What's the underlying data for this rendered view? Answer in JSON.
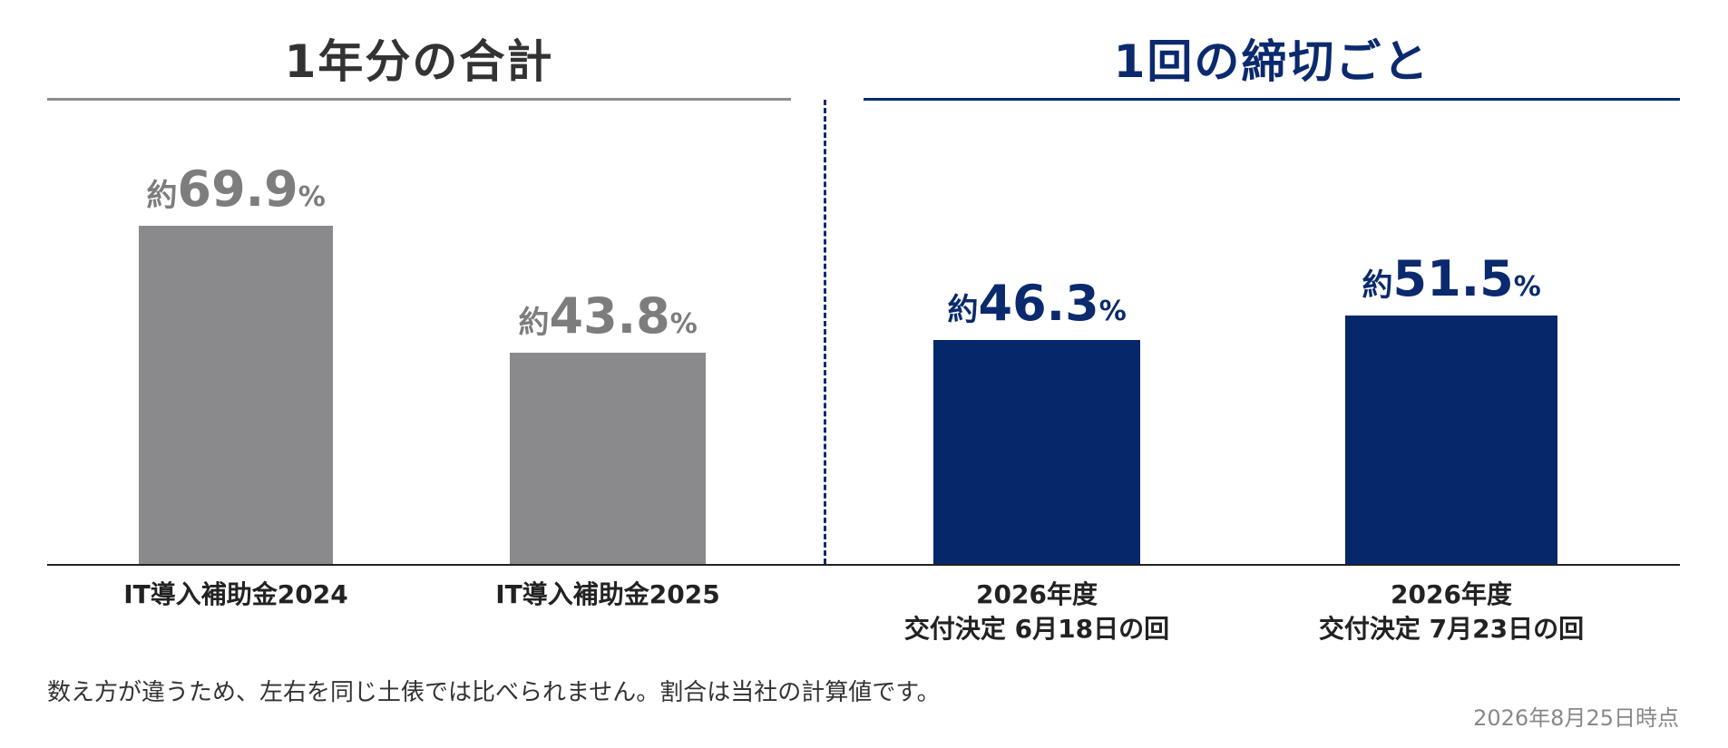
{
  "colors": {
    "gray": "#8a8a8c",
    "navy": "#07276b",
    "gray_text": "#7d7d7d",
    "navy_text": "#0b2a6e"
  },
  "sections": {
    "left_title": "1年分の合計",
    "right_title": "1回の締切ごと"
  },
  "chart_data": {
    "type": "bar",
    "categories": [
      "IT導入補助金2024",
      "IT導入補助金2025",
      "2026年度 交付決定 6月18日の回",
      "2026年度 交付決定 7月23日の回"
    ],
    "values": [
      69.9,
      43.8,
      46.3,
      51.5
    ],
    "value_labels": [
      {
        "prefix": "約",
        "number": "69.9",
        "suffix": "%"
      },
      {
        "prefix": "約",
        "number": "43.8",
        "suffix": "%"
      },
      {
        "prefix": "約",
        "number": "46.3",
        "suffix": "%"
      },
      {
        "prefix": "約",
        "number": "51.5",
        "suffix": "%"
      }
    ],
    "category_lines": [
      [
        "IT導入補助金2024"
      ],
      [
        "IT導入補助金2025"
      ],
      [
        "2026年度",
        "交付決定 6月18日の回"
      ],
      [
        "2026年度",
        "交付決定 7月23日の回"
      ]
    ],
    "bar_colors": [
      "gray",
      "gray",
      "navy",
      "navy"
    ],
    "groups": [
      {
        "title": "1年分の合計",
        "categories": [
          0,
          1
        ]
      },
      {
        "title": "1回の締切ごと",
        "categories": [
          2,
          3
        ]
      }
    ],
    "ylim": [
      0,
      100
    ],
    "xlabel": "",
    "ylabel": "",
    "grid": false,
    "legend": "none"
  },
  "footnote": "数え方が違うため、左右を同じ土俵では比べられません。割合は当社の計算値です。",
  "date_note": "2026年8月25日時点"
}
